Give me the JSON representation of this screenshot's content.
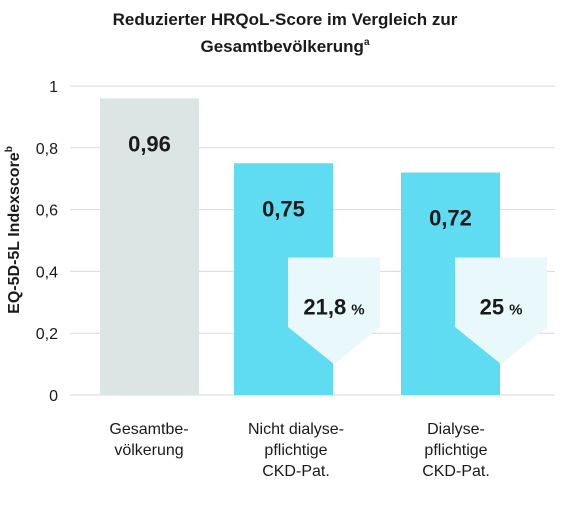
{
  "chart_data": {
    "type": "bar",
    "title": [
      "Reduzierter HRQoL-Score im Vergleich zur",
      "Gesamtbevölkerung"
    ],
    "title_superscript": "a",
    "ylabel": "EQ-5D-5L Indexscore",
    "ylabel_superscript": "b",
    "ylim": [
      0,
      1
    ],
    "yticks": [
      {
        "value": 0,
        "label": "0"
      },
      {
        "value": 0.2,
        "label": "0,2"
      },
      {
        "value": 0.4,
        "label": "0,4"
      },
      {
        "value": 0.6,
        "label": "0,6"
      },
      {
        "value": 0.8,
        "label": "0,8"
      },
      {
        "value": 1,
        "label": "1"
      }
    ],
    "grid": true,
    "categories": [
      [
        "Gesamtbe-",
        "völkerung"
      ],
      [
        "Nicht dialyse-",
        "pflichtige",
        "CKD-Pat."
      ],
      [
        "Dialyse-",
        "pflichtige",
        "CKD-Pat."
      ]
    ],
    "values": [
      0.96,
      0.75,
      0.72
    ],
    "value_labels": [
      "0,96",
      "0,75",
      "0,72"
    ],
    "reductions": [
      null,
      {
        "value": "21,8",
        "unit": "%"
      },
      {
        "value": "25",
        "unit": "%"
      }
    ],
    "colors": {
      "reference_bar": "#dde5e4",
      "ckd_bar": "#5fdcf2",
      "reduction_box": "#e8f8fb",
      "grid": "#d9d9d9"
    }
  }
}
